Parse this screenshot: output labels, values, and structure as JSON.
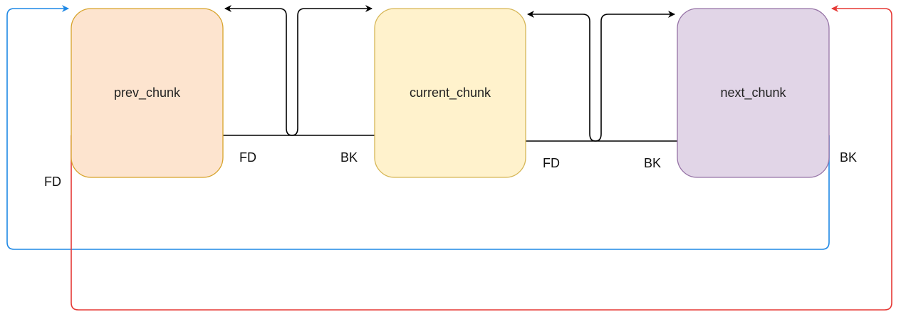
{
  "nodes": {
    "prev": {
      "label": "prev_chunk",
      "fill": "#fde4cf",
      "stroke": "#d7a32a"
    },
    "current": {
      "label": "current_chunk",
      "fill": "#fff2cc",
      "stroke": "#d6b656"
    },
    "next": {
      "label": "next_chunk",
      "fill": "#e1d5e7",
      "stroke": "#9673a6"
    }
  },
  "edge_labels": {
    "prev_fd": "FD",
    "current_bk": "BK",
    "current_fd": "FD",
    "next_bk": "BK",
    "next_outer_bk": "BK",
    "prev_outer_fd": "FD"
  },
  "colors": {
    "link": "#000000",
    "blue_link": "#1e88e5",
    "red_link": "#e53935"
  }
}
